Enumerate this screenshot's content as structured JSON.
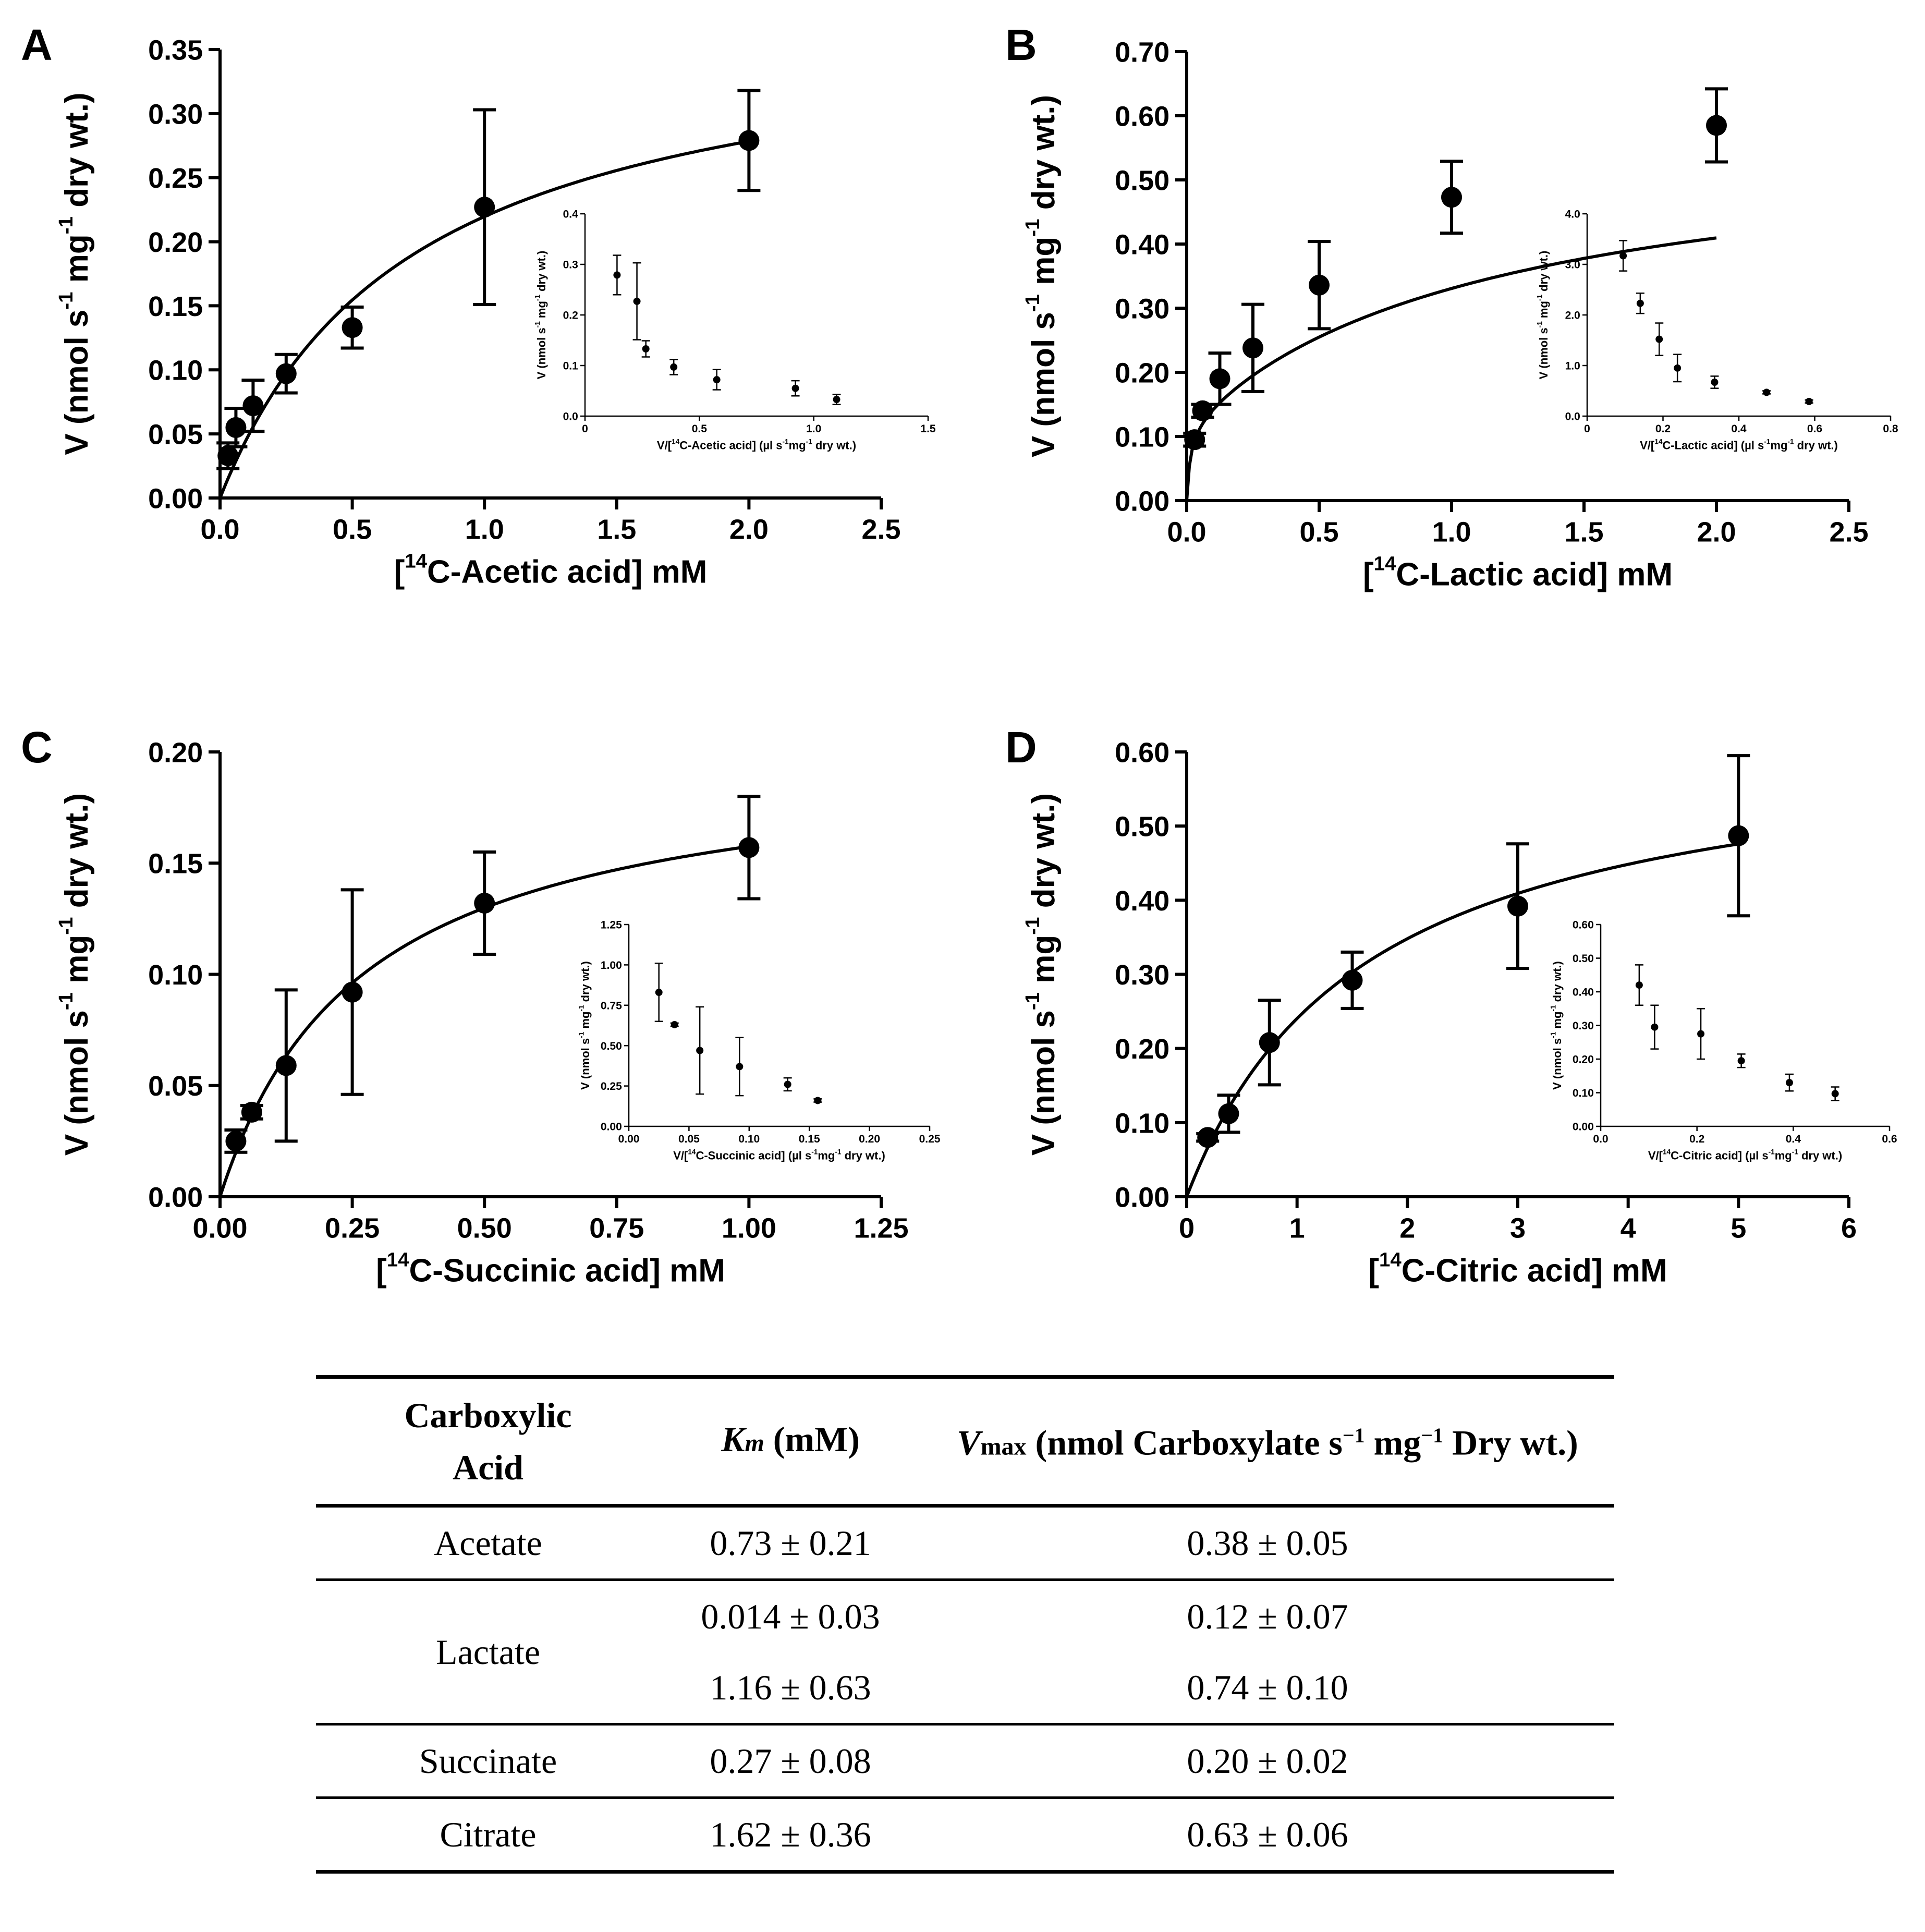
{
  "chart_data": [
    {
      "panel": "A",
      "type": "scatter",
      "xlabel": "[14C-Acetic acid] mM",
      "ylabel": "V (nmol s-1 mg-1 dry wt.)",
      "xlim": [
        0,
        2.5
      ],
      "ylim": [
        0,
        0.35
      ],
      "xticks": [
        "0.0",
        "0.5",
        "1.0",
        "1.5",
        "2.0",
        "2.5"
      ],
      "yticks": [
        "0.00",
        "0.05",
        "0.10",
        "0.15",
        "0.20",
        "0.25",
        "0.30",
        "0.35"
      ],
      "x": [
        0.03,
        0.06,
        0.125,
        0.25,
        0.5,
        1.0,
        2.0
      ],
      "y": [
        0.033,
        0.055,
        0.072,
        0.097,
        0.133,
        0.227,
        0.279
      ],
      "err": [
        0.01,
        0.015,
        0.02,
        0.015,
        0.016,
        0.076,
        0.039
      ],
      "fit": {
        "vmax": 0.38,
        "km": 0.73
      },
      "inset": {
        "xlabel": "V/[14C-Acetic acid] (µl s-1mg-1 dry wt.)",
        "ylabel": "V (nmol s-1 mg-1 dry wt.)",
        "xlim": [
          0,
          1.5
        ],
        "ylim": [
          0,
          0.4
        ],
        "xticks": [
          "0",
          "0.5",
          "1.0",
          "1.5"
        ],
        "yticks": [
          "0.0",
          "0.1",
          "0.2",
          "0.3",
          "0.4"
        ],
        "x": [
          0.14,
          0.227,
          0.266,
          0.388,
          0.576,
          0.92,
          1.1
        ],
        "y": [
          0.279,
          0.227,
          0.133,
          0.097,
          0.072,
          0.055,
          0.033
        ],
        "err": [
          0.039,
          0.076,
          0.016,
          0.015,
          0.02,
          0.015,
          0.01
        ]
      }
    },
    {
      "panel": "B",
      "type": "scatter",
      "xlabel": "[14C-Lactic acid] mM",
      "ylabel": "V (nmol s-1 mg-1 dry wt.)",
      "xlim": [
        0,
        2.5
      ],
      "ylim": [
        0,
        0.7
      ],
      "xticks": [
        "0.0",
        "0.5",
        "1.0",
        "1.5",
        "2.0",
        "2.5"
      ],
      "yticks": [
        "0.00",
        "0.10",
        "0.20",
        "0.30",
        "0.40",
        "0.50",
        "0.60",
        "0.70"
      ],
      "x": [
        0.03,
        0.06,
        0.125,
        0.25,
        0.5,
        1.0,
        2.0
      ],
      "y": [
        0.095,
        0.14,
        0.19,
        0.238,
        0.336,
        0.473,
        0.585
      ],
      "err": [
        0.01,
        0.01,
        0.04,
        0.068,
        0.068,
        0.056,
        0.057
      ],
      "fit": {
        "vmax1": 0.12,
        "km1": 0.014,
        "vmax2": 0.74,
        "km2": 1.16
      },
      "inset": {
        "xlabel": "V/[14C-Lactic acid] (µl s-1mg-1 dry wt.)",
        "ylabel": "V (nmol s-1 mg-1 dry wt.)",
        "xlim": [
          0,
          0.8
        ],
        "ylim": [
          0,
          4.0
        ],
        "xticks": [
          "0",
          "0.2",
          "0.4",
          "0.6",
          "0.8"
        ],
        "yticks": [
          "0.0",
          "1.0",
          "2.0",
          "3.0",
          "4.0"
        ],
        "x": [
          0.095,
          0.14,
          0.19,
          0.238,
          0.336,
          0.473,
          0.585
        ],
        "y": [
          3.17,
          2.23,
          1.52,
          0.95,
          0.67,
          0.47,
          0.29
        ],
        "err": [
          0.3,
          0.2,
          0.32,
          0.27,
          0.12,
          0.03,
          0.03
        ]
      }
    },
    {
      "panel": "C",
      "type": "scatter",
      "xlabel": "[14C-Succinic acid] mM",
      "ylabel": "V (nmol s-1 mg-1 dry wt.)",
      "xlim": [
        0,
        1.25
      ],
      "ylim": [
        0,
        0.2
      ],
      "xticks": [
        "0.00",
        "0.25",
        "0.50",
        "0.75",
        "1.00",
        "1.25"
      ],
      "yticks": [
        "0.00",
        "0.05",
        "0.10",
        "0.15",
        "0.20"
      ],
      "x": [
        0.03,
        0.06,
        0.125,
        0.25,
        0.5,
        1.0
      ],
      "y": [
        0.025,
        0.038,
        0.059,
        0.092,
        0.132,
        0.157
      ],
      "err": [
        0.005,
        0.003,
        0.034,
        0.046,
        0.023,
        0.023
      ],
      "fit": {
        "vmax": 0.2,
        "km": 0.27
      },
      "inset": {
        "xlabel": "V/[14C-Succinic acid] (µl s-1mg-1 dry wt.)",
        "ylabel": "V (nmol s-1 mg-1 dry wt.)",
        "xlim": [
          0,
          0.25
        ],
        "ylim": [
          0,
          1.25
        ],
        "xticks": [
          "0.00",
          "0.05",
          "0.10",
          "0.15",
          "0.20",
          "0.25"
        ],
        "yticks": [
          "0.00",
          "0.25",
          "0.50",
          "0.75",
          "1.00",
          "1.25"
        ],
        "x": [
          0.025,
          0.038,
          0.059,
          0.092,
          0.132,
          0.157
        ],
        "y": [
          0.83,
          0.63,
          0.47,
          0.37,
          0.26,
          0.16
        ],
        "err": [
          0.18,
          0.01,
          0.27,
          0.18,
          0.04,
          0.01
        ]
      }
    },
    {
      "panel": "D",
      "type": "scatter",
      "xlabel": "[14C-Citric acid] mM",
      "ylabel": "V (nmol s-1 mg-1 dry wt.)",
      "xlim": [
        0,
        6
      ],
      "ylim": [
        0,
        0.6
      ],
      "xticks": [
        "0",
        "1",
        "2",
        "3",
        "4",
        "5",
        "6"
      ],
      "yticks": [
        "0.00",
        "0.10",
        "0.20",
        "0.30",
        "0.40",
        "0.50",
        "0.60"
      ],
      "x": [
        0.19,
        0.38,
        0.75,
        1.5,
        3.0,
        5.0
      ],
      "y": [
        0.08,
        0.112,
        0.208,
        0.292,
        0.392,
        0.487
      ],
      "err": [
        0.005,
        0.025,
        0.057,
        0.038,
        0.084,
        0.108
      ],
      "fit": {
        "vmax": 0.63,
        "km": 1.62
      },
      "inset": {
        "xlabel": "V/[14C-Citric acid] (µl s-1mg-1 dry wt.)",
        "ylabel": "V (nmol s-1 mg-1 dry wt.)",
        "xlim": [
          0,
          0.6
        ],
        "ylim": [
          0,
          0.6
        ],
        "xticks": [
          "0.0",
          "0.2",
          "0.4",
          "0.6"
        ],
        "yticks": [
          "0.00",
          "0.10",
          "0.20",
          "0.30",
          "0.40",
          "0.50",
          "0.60"
        ],
        "x": [
          0.08,
          0.112,
          0.208,
          0.292,
          0.392,
          0.487
        ],
        "y": [
          0.42,
          0.295,
          0.275,
          0.195,
          0.13,
          0.097
        ],
        "err": [
          0.06,
          0.065,
          0.075,
          0.02,
          0.025,
          0.02
        ]
      }
    }
  ],
  "table": {
    "header": {
      "acid_line1": "Carboxylic",
      "acid_line2": "Acid",
      "km_symbol": "K",
      "km_sub": "m",
      "km_unit": " (mM)",
      "vmax_symbol": "V",
      "vmax_sub": "max",
      "vmax_unit_a": " (nmol Carboxylate s",
      "vmax_exp1": "−1",
      "vmax_unit_b": " mg",
      "vmax_exp2": "−1",
      "vmax_unit_c": " Dry wt.)"
    },
    "rows": [
      {
        "acid": "Acetate",
        "km": [
          "0.73 ± 0.21"
        ],
        "vmax": [
          "0.38 ± 0.05"
        ]
      },
      {
        "acid": "Lactate",
        "km": [
          "0.014 ± 0.03",
          "1.16 ± 0.63"
        ],
        "vmax": [
          "0.12 ± 0.07",
          "0.74 ± 0.10"
        ]
      },
      {
        "acid": "Succinate",
        "km": [
          "0.27 ± 0.08"
        ],
        "vmax": [
          "0.20 ± 0.02"
        ]
      },
      {
        "acid": "Citrate",
        "km": [
          "1.62 ± 0.36"
        ],
        "vmax": [
          "0.63 ± 0.06"
        ]
      }
    ]
  }
}
